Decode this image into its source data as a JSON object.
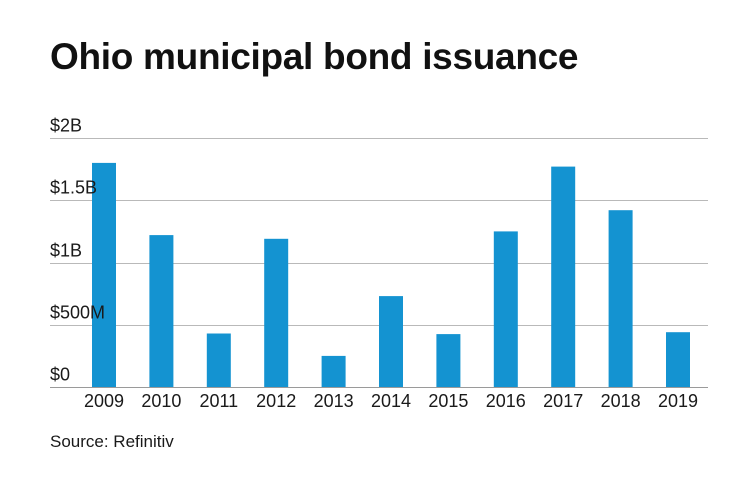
{
  "chart_data": {
    "type": "bar",
    "title": "Ohio municipal bond issuance",
    "source": "Source: Refinitiv",
    "xlabel": "",
    "ylabel": "",
    "ylim": [
      0,
      2000000000
    ],
    "grid": true,
    "bar_color": "#1493d1",
    "categories": [
      "2009",
      "2010",
      "2011",
      "2012",
      "2013",
      "2014",
      "2015",
      "2016",
      "2017",
      "2018",
      "2019"
    ],
    "values": [
      1800000000,
      1220000000,
      430000000,
      1190000000,
      250000000,
      730000000,
      425000000,
      1250000000,
      1770000000,
      1420000000,
      440000000
    ],
    "y_ticks": [
      {
        "value": 0,
        "label": "$0"
      },
      {
        "value": 500000000,
        "label": "$500M"
      },
      {
        "value": 1000000000,
        "label": "$1B"
      },
      {
        "value": 1500000000,
        "label": "$1.5B"
      },
      {
        "value": 2000000000,
        "label": "$2B"
      }
    ]
  }
}
